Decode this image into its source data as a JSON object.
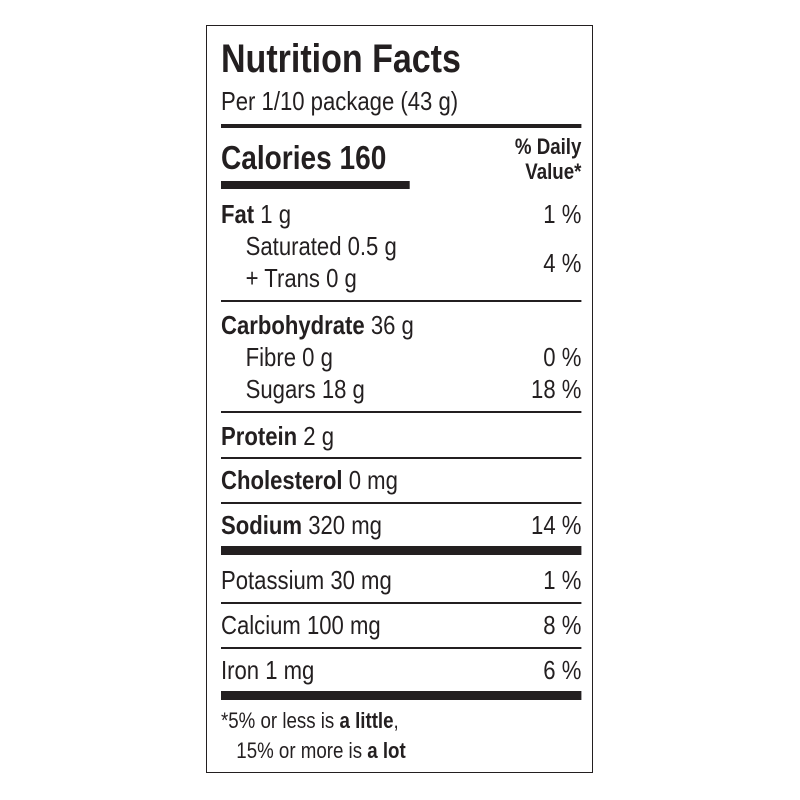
{
  "title": "Nutrition Facts",
  "serving": "Per 1/10 package (43 g)",
  "calories": {
    "label": "Calories",
    "value": "160"
  },
  "dv_header": {
    "line1": "% Daily",
    "line2": "Value*"
  },
  "rows": {
    "fat": {
      "label": "Fat",
      "amount": "1 g",
      "dv": "1 %"
    },
    "saturated": {
      "label": "Saturated 0.5 g"
    },
    "trans": {
      "label": "+ Trans 0 g"
    },
    "sat_trans_dv": "4 %",
    "carb": {
      "label": "Carbohydrate",
      "amount": "36 g"
    },
    "fibre": {
      "label": "Fibre 0 g",
      "dv": "0 %"
    },
    "sugars": {
      "label": "Sugars 18 g",
      "dv": "18 %"
    },
    "protein": {
      "label": "Protein",
      "amount": "2 g"
    },
    "cholesterol": {
      "label": "Cholesterol",
      "amount": "0 mg"
    },
    "sodium": {
      "label": "Sodium",
      "amount": "320 mg",
      "dv": "14 %"
    },
    "potassium": {
      "label": "Potassium 30 mg",
      "dv": "1 %"
    },
    "calcium": {
      "label": "Calcium 100 mg",
      "dv": "8 %"
    },
    "iron": {
      "label": "Iron 1 mg",
      "dv": "6 %"
    }
  },
  "footnote": {
    "star": "*",
    "line1_pre": "5% or less is ",
    "line1_bold": "a little",
    "line1_post": ",",
    "line2_pre": "15% or more is ",
    "line2_bold": "a lot"
  }
}
